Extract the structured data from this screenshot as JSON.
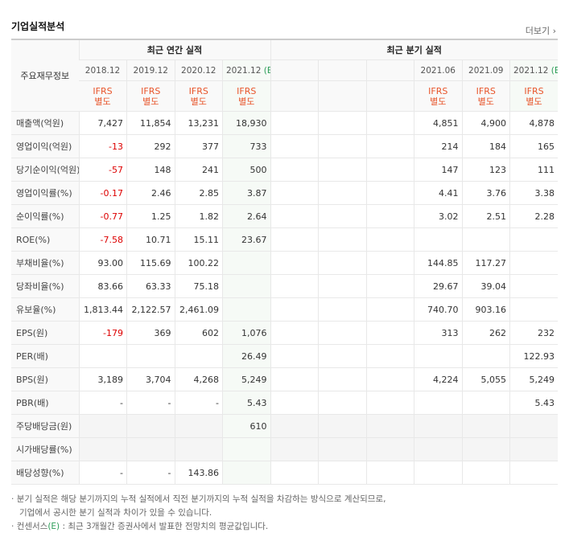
{
  "header": {
    "title": "기업실적분석",
    "more": "더보기"
  },
  "table": {
    "row_header": "주요재무정보",
    "annual_title": "최근 연간 실적",
    "quarter_title": "최근 분기 실적",
    "annual_periods": [
      {
        "date": "2018.12"
      },
      {
        "date": "2019.12"
      },
      {
        "date": "2020.12"
      },
      {
        "date": "2021.12",
        "estimate": "(E)"
      }
    ],
    "quarter_periods": [
      {
        "date": "2021.06"
      },
      {
        "date": "2021.09"
      },
      {
        "date": "2021.12",
        "estimate": "(E)"
      }
    ],
    "annual_standards": [
      {
        "standard": "IFRS",
        "basis": "별도"
      },
      {
        "standard": "IFRS",
        "basis": "별도"
      },
      {
        "standard": "IFRS",
        "basis": "별도"
      },
      {
        "standard": "IFRS",
        "basis": "별도"
      }
    ],
    "quarter_standards": [
      {
        "standard": "IFRS",
        "basis": "별도"
      },
      {
        "standard": "IFRS",
        "basis": "별도"
      },
      {
        "standard": "IFRS",
        "basis": "별도"
      }
    ],
    "rows": [
      {
        "label": "매출액(억원)",
        "annual": [
          "7,427",
          "11,854",
          "13,231",
          "18,930"
        ],
        "quarter": [
          "4,851",
          "4,900",
          "4,878"
        ]
      },
      {
        "label": "영업이익(억원)",
        "annual": [
          "-13",
          "292",
          "377",
          "733"
        ],
        "quarter": [
          "214",
          "184",
          "165"
        ]
      },
      {
        "label": "당기순이익(억원)",
        "annual": [
          "-57",
          "148",
          "241",
          "500"
        ],
        "quarter": [
          "147",
          "123",
          "111"
        ]
      },
      {
        "label": "영업이익률(%)",
        "annual": [
          "-0.17",
          "2.46",
          "2.85",
          "3.87"
        ],
        "quarter": [
          "4.41",
          "3.76",
          "3.38"
        ]
      },
      {
        "label": "순이익률(%)",
        "annual": [
          "-0.77",
          "1.25",
          "1.82",
          "2.64"
        ],
        "quarter": [
          "3.02",
          "2.51",
          "2.28"
        ]
      },
      {
        "label": "ROE(%)",
        "annual": [
          "-7.58",
          "10.71",
          "15.11",
          "23.67"
        ],
        "quarter": [
          null,
          null,
          null
        ]
      },
      {
        "label": "부채비율(%)",
        "annual": [
          "93.00",
          "115.69",
          "100.22",
          null
        ],
        "quarter": [
          "144.85",
          "117.27",
          null
        ]
      },
      {
        "label": "당좌비율(%)",
        "annual": [
          "83.66",
          "63.33",
          "75.18",
          null
        ],
        "quarter": [
          "29.67",
          "39.04",
          null
        ]
      },
      {
        "label": "유보율(%)",
        "annual": [
          "1,813.44",
          "2,122.57",
          "2,461.09",
          null
        ],
        "quarter": [
          "740.70",
          "903.16",
          null
        ]
      },
      {
        "label": "EPS(원)",
        "annual": [
          "-179",
          "369",
          "602",
          "1,076"
        ],
        "quarter": [
          "313",
          "262",
          "232"
        ]
      },
      {
        "label": "PER(배)",
        "annual": [
          null,
          null,
          null,
          "26.49"
        ],
        "quarter": [
          null,
          null,
          "122.93"
        ]
      },
      {
        "label": "BPS(원)",
        "annual": [
          "3,189",
          "3,704",
          "4,268",
          "5,249"
        ],
        "quarter": [
          "4,224",
          "5,055",
          "5,249"
        ]
      },
      {
        "label": "PBR(배)",
        "annual": [
          "-",
          "-",
          "-",
          "5.43"
        ],
        "quarter": [
          null,
          null,
          "5.43"
        ]
      },
      {
        "label": "주당배당금(원)",
        "annual": [
          null,
          null,
          null,
          "610"
        ],
        "quarter": [
          null,
          null,
          null
        ]
      },
      {
        "label": "시가배당률(%)",
        "annual": [
          null,
          null,
          null,
          null
        ],
        "quarter": [
          null,
          null,
          null
        ]
      },
      {
        "label": "배당성향(%)",
        "annual": [
          "-",
          "-",
          "143.86",
          null
        ],
        "quarter": [
          null,
          null,
          null
        ]
      }
    ]
  },
  "notes": {
    "quarterly": [
      "분기 실적은 해당 분기까지의 누적 실적에서 직전 분기까지의 누적 실적을 차감하는 방식으로 계산되므로,",
      "기업에서 공시한 분기 실적과 차이가 있을 수 있습니다."
    ],
    "consensus": {
      "term": "컨센서스",
      "mark": "(E)",
      "text": ": 최근 3개월간 증권사에서 발표한 전망치의 평균값입니다."
    }
  }
}
